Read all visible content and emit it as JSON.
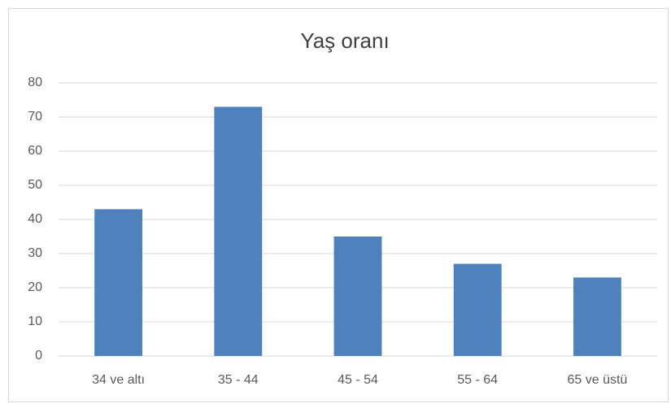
{
  "chart_data": {
    "type": "bar",
    "title": "Yaş oranı",
    "categories": [
      "34 ve altı",
      "35 - 44",
      "45 - 54",
      "55 - 64",
      "65 ve üstü"
    ],
    "values": [
      43,
      73,
      35,
      27,
      23
    ],
    "color": "#4f81bd",
    "ylim": [
      0,
      80
    ],
    "yticks": [
      0,
      10,
      20,
      30,
      40,
      50,
      60,
      70,
      80
    ],
    "grid": true
  }
}
